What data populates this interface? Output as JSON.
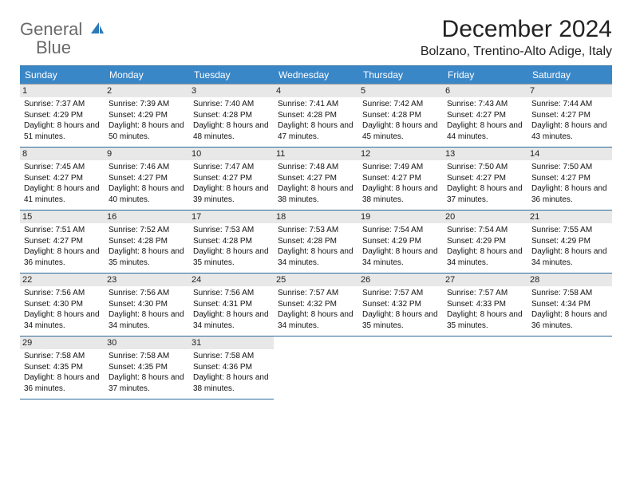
{
  "logo": {
    "text1": "General",
    "text2": "Blue"
  },
  "title": "December 2024",
  "location": "Bolzano, Trentino-Alto Adige, Italy",
  "colors": {
    "header_bg": "#3a87c8",
    "header_text": "#ffffff",
    "daynum_bg": "#e8e8e8",
    "border": "#2a6a9a",
    "logo_gray": "#6a6a6a",
    "logo_blue": "#2a7ab9"
  },
  "day_headers": [
    "Sunday",
    "Monday",
    "Tuesday",
    "Wednesday",
    "Thursday",
    "Friday",
    "Saturday"
  ],
  "weeks": [
    [
      {
        "n": "1",
        "sr": "7:37 AM",
        "ss": "4:29 PM",
        "dl": "8 hours and 51 minutes."
      },
      {
        "n": "2",
        "sr": "7:39 AM",
        "ss": "4:29 PM",
        "dl": "8 hours and 50 minutes."
      },
      {
        "n": "3",
        "sr": "7:40 AM",
        "ss": "4:28 PM",
        "dl": "8 hours and 48 minutes."
      },
      {
        "n": "4",
        "sr": "7:41 AM",
        "ss": "4:28 PM",
        "dl": "8 hours and 47 minutes."
      },
      {
        "n": "5",
        "sr": "7:42 AM",
        "ss": "4:28 PM",
        "dl": "8 hours and 45 minutes."
      },
      {
        "n": "6",
        "sr": "7:43 AM",
        "ss": "4:27 PM",
        "dl": "8 hours and 44 minutes."
      },
      {
        "n": "7",
        "sr": "7:44 AM",
        "ss": "4:27 PM",
        "dl": "8 hours and 43 minutes."
      }
    ],
    [
      {
        "n": "8",
        "sr": "7:45 AM",
        "ss": "4:27 PM",
        "dl": "8 hours and 41 minutes."
      },
      {
        "n": "9",
        "sr": "7:46 AM",
        "ss": "4:27 PM",
        "dl": "8 hours and 40 minutes."
      },
      {
        "n": "10",
        "sr": "7:47 AM",
        "ss": "4:27 PM",
        "dl": "8 hours and 39 minutes."
      },
      {
        "n": "11",
        "sr": "7:48 AM",
        "ss": "4:27 PM",
        "dl": "8 hours and 38 minutes."
      },
      {
        "n": "12",
        "sr": "7:49 AM",
        "ss": "4:27 PM",
        "dl": "8 hours and 38 minutes."
      },
      {
        "n": "13",
        "sr": "7:50 AM",
        "ss": "4:27 PM",
        "dl": "8 hours and 37 minutes."
      },
      {
        "n": "14",
        "sr": "7:50 AM",
        "ss": "4:27 PM",
        "dl": "8 hours and 36 minutes."
      }
    ],
    [
      {
        "n": "15",
        "sr": "7:51 AM",
        "ss": "4:27 PM",
        "dl": "8 hours and 36 minutes."
      },
      {
        "n": "16",
        "sr": "7:52 AM",
        "ss": "4:28 PM",
        "dl": "8 hours and 35 minutes."
      },
      {
        "n": "17",
        "sr": "7:53 AM",
        "ss": "4:28 PM",
        "dl": "8 hours and 35 minutes."
      },
      {
        "n": "18",
        "sr": "7:53 AM",
        "ss": "4:28 PM",
        "dl": "8 hours and 34 minutes."
      },
      {
        "n": "19",
        "sr": "7:54 AM",
        "ss": "4:29 PM",
        "dl": "8 hours and 34 minutes."
      },
      {
        "n": "20",
        "sr": "7:54 AM",
        "ss": "4:29 PM",
        "dl": "8 hours and 34 minutes."
      },
      {
        "n": "21",
        "sr": "7:55 AM",
        "ss": "4:29 PM",
        "dl": "8 hours and 34 minutes."
      }
    ],
    [
      {
        "n": "22",
        "sr": "7:56 AM",
        "ss": "4:30 PM",
        "dl": "8 hours and 34 minutes."
      },
      {
        "n": "23",
        "sr": "7:56 AM",
        "ss": "4:30 PM",
        "dl": "8 hours and 34 minutes."
      },
      {
        "n": "24",
        "sr": "7:56 AM",
        "ss": "4:31 PM",
        "dl": "8 hours and 34 minutes."
      },
      {
        "n": "25",
        "sr": "7:57 AM",
        "ss": "4:32 PM",
        "dl": "8 hours and 34 minutes."
      },
      {
        "n": "26",
        "sr": "7:57 AM",
        "ss": "4:32 PM",
        "dl": "8 hours and 35 minutes."
      },
      {
        "n": "27",
        "sr": "7:57 AM",
        "ss": "4:33 PM",
        "dl": "8 hours and 35 minutes."
      },
      {
        "n": "28",
        "sr": "7:58 AM",
        "ss": "4:34 PM",
        "dl": "8 hours and 36 minutes."
      }
    ],
    [
      {
        "n": "29",
        "sr": "7:58 AM",
        "ss": "4:35 PM",
        "dl": "8 hours and 36 minutes."
      },
      {
        "n": "30",
        "sr": "7:58 AM",
        "ss": "4:35 PM",
        "dl": "8 hours and 37 minutes."
      },
      {
        "n": "31",
        "sr": "7:58 AM",
        "ss": "4:36 PM",
        "dl": "8 hours and 38 minutes."
      },
      null,
      null,
      null,
      null
    ]
  ],
  "labels": {
    "sunrise": "Sunrise:",
    "sunset": "Sunset:",
    "daylight": "Daylight:"
  }
}
